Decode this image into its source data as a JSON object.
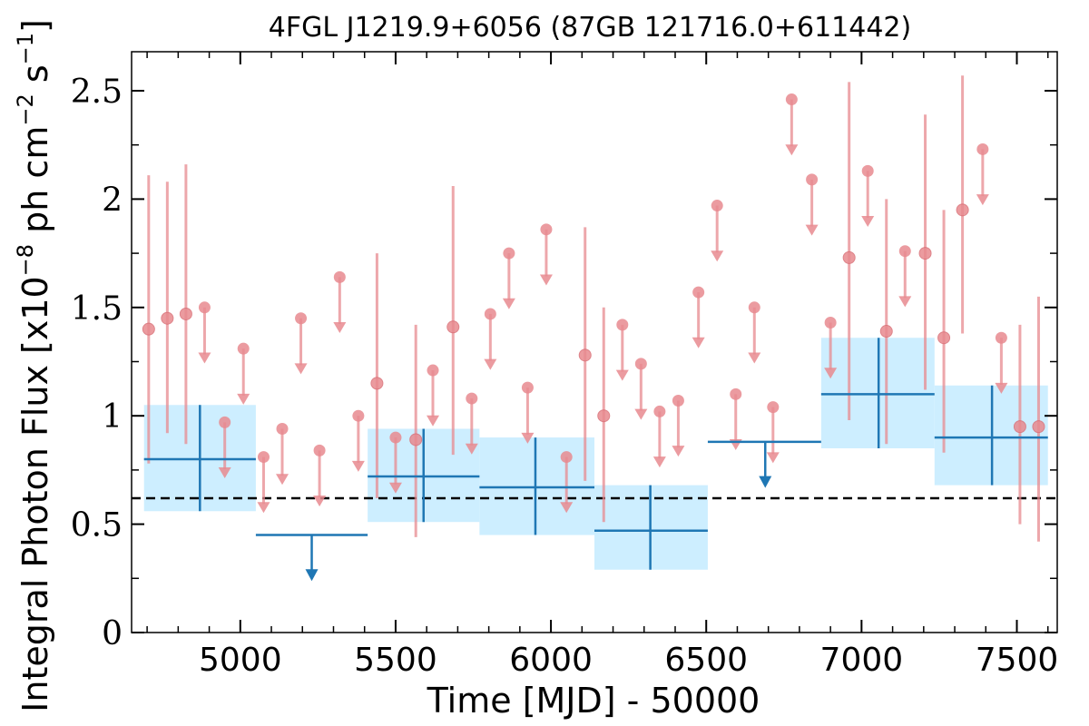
{
  "chart_data": {
    "type": "scatter",
    "title": "4FGL J1219.9+6056 (87GB 121716.0+611442)",
    "xlabel": "Time [MJD] - 50000",
    "ylabel_main": "Integral Photon Flux [x10",
    "ylabel_exp1": "−8",
    "ylabel_mid": " ph cm",
    "ylabel_exp2": "−2",
    "ylabel_mid2": " s",
    "ylabel_exp3": "−1",
    "ylabel_end": "]",
    "xlim": [
      4650,
      7630
    ],
    "ylim": [
      0,
      2.68
    ],
    "x_ticks": [
      5000,
      5500,
      6000,
      6500,
      7000,
      7500
    ],
    "x_tick_labels": [
      "5000",
      "5500",
      "6000",
      "6500",
      "7000",
      "7500"
    ],
    "y_ticks": [
      0,
      0.5,
      1,
      1.5,
      2,
      2.5
    ],
    "y_tick_labels": [
      "0",
      "0.5",
      "1",
      "1.5",
      "2",
      "2.5"
    ],
    "mean_flux": 0.62,
    "colors": {
      "short_bins": "#e88a8f",
      "long_bins": "#1f77b4",
      "long_bin_box": "#cdeeff",
      "mean_line": "#000000"
    },
    "short_bins_detections": [
      {
        "x": 4705,
        "y": 1.4,
        "ylo": 0.78,
        "yhi": 2.11
      },
      {
        "x": 4765,
        "y": 1.45,
        "ylo": 0.92,
        "yhi": 2.08
      },
      {
        "x": 4825,
        "y": 1.47,
        "ylo": 0.87,
        "yhi": 2.16
      },
      {
        "x": 5440,
        "y": 1.15,
        "ylo": 0.62,
        "yhi": 1.75
      },
      {
        "x": 5565,
        "y": 0.89,
        "ylo": 0.44,
        "yhi": 1.42
      },
      {
        "x": 5685,
        "y": 1.41,
        "ylo": 0.82,
        "yhi": 2.06
      },
      {
        "x": 6110,
        "y": 1.28,
        "ylo": 0.7,
        "yhi": 1.87
      },
      {
        "x": 6170,
        "y": 1.0,
        "ylo": 0.51,
        "yhi": 1.5
      },
      {
        "x": 6960,
        "y": 1.73,
        "ylo": 0.98,
        "yhi": 2.54
      },
      {
        "x": 7080,
        "y": 1.39,
        "ylo": 0.87,
        "yhi": 2.0
      },
      {
        "x": 7205,
        "y": 1.75,
        "ylo": 1.12,
        "yhi": 2.39
      },
      {
        "x": 7265,
        "y": 1.36,
        "ylo": 0.83,
        "yhi": 1.95
      },
      {
        "x": 7325,
        "y": 1.95,
        "ylo": 1.38,
        "yhi": 2.57
      },
      {
        "x": 7510,
        "y": 0.95,
        "ylo": 0.5,
        "yhi": 1.42
      },
      {
        "x": 7570,
        "y": 0.95,
        "ylo": 0.42,
        "yhi": 1.55
      }
    ],
    "short_bins_upper_limits": [
      {
        "x": 4885,
        "y": 1.5
      },
      {
        "x": 4950,
        "y": 0.97
      },
      {
        "x": 5010,
        "y": 1.31
      },
      {
        "x": 5075,
        "y": 0.81
      },
      {
        "x": 5135,
        "y": 0.94
      },
      {
        "x": 5195,
        "y": 1.45
      },
      {
        "x": 5255,
        "y": 0.84
      },
      {
        "x": 5320,
        "y": 1.64
      },
      {
        "x": 5380,
        "y": 1.0
      },
      {
        "x": 5500,
        "y": 0.9
      },
      {
        "x": 5620,
        "y": 1.21
      },
      {
        "x": 5745,
        "y": 1.08
      },
      {
        "x": 5805,
        "y": 1.47
      },
      {
        "x": 5865,
        "y": 1.75
      },
      {
        "x": 5925,
        "y": 1.13
      },
      {
        "x": 5985,
        "y": 1.86
      },
      {
        "x": 6050,
        "y": 0.81
      },
      {
        "x": 6230,
        "y": 1.42
      },
      {
        "x": 6290,
        "y": 1.24
      },
      {
        "x": 6350,
        "y": 1.02
      },
      {
        "x": 6410,
        "y": 1.07
      },
      {
        "x": 6475,
        "y": 1.57
      },
      {
        "x": 6535,
        "y": 1.97
      },
      {
        "x": 6595,
        "y": 1.1
      },
      {
        "x": 6655,
        "y": 1.5
      },
      {
        "x": 6715,
        "y": 1.04
      },
      {
        "x": 6775,
        "y": 2.46
      },
      {
        "x": 6840,
        "y": 2.09
      },
      {
        "x": 6900,
        "y": 1.43
      },
      {
        "x": 7020,
        "y": 2.13
      },
      {
        "x": 7140,
        "y": 1.76
      },
      {
        "x": 7390,
        "y": 2.23
      },
      {
        "x": 7450,
        "y": 1.36
      }
    ],
    "long_bins_detections": [
      {
        "x": 4870,
        "x0": 4690,
        "x1": 5050,
        "y": 0.8,
        "ylo": 0.56,
        "yhi": 1.05
      },
      {
        "x": 5590,
        "x0": 5410,
        "x1": 5770,
        "y": 0.72,
        "ylo": 0.51,
        "yhi": 0.94
      },
      {
        "x": 5950,
        "x0": 5770,
        "x1": 6140,
        "y": 0.67,
        "ylo": 0.45,
        "yhi": 0.9
      },
      {
        "x": 6320,
        "x0": 6140,
        "x1": 6505,
        "y": 0.47,
        "ylo": 0.29,
        "yhi": 0.68
      },
      {
        "x": 7055,
        "x0": 6870,
        "x1": 7235,
        "y": 1.1,
        "ylo": 0.85,
        "yhi": 1.36
      },
      {
        "x": 7420,
        "x0": 7235,
        "x1": 7600,
        "y": 0.9,
        "ylo": 0.68,
        "yhi": 1.14
      }
    ],
    "long_bins_upper_limits": [
      {
        "x": 5230,
        "x0": 5050,
        "x1": 5410,
        "y": 0.45
      },
      {
        "x": 6690,
        "x0": 6505,
        "x1": 6870,
        "y": 0.88
      }
    ]
  }
}
